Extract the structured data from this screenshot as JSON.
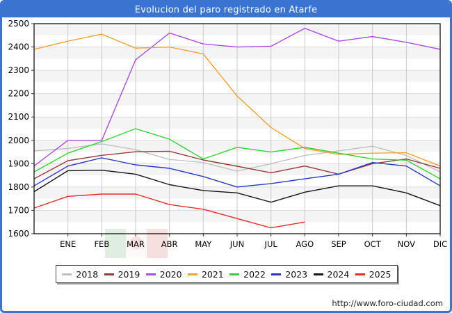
{
  "title": "Evolucion del paro registrado en Atarfe",
  "footer": {
    "url": "http://www.foro-ciudad.com"
  },
  "colors": {
    "frame_blue": "#3b74d0",
    "band": "#f4f4f4",
    "grid_vertical": "#c9c9c9",
    "grid_horizontal": "#dcdcdc",
    "plot_border": "#000000",
    "axis_text": "#000000"
  },
  "chart_data": {
    "type": "line",
    "title": "Evolucion del paro registrado en Atarfe",
    "xlabel": "",
    "ylabel": "",
    "x_categories": [
      "ENE",
      "FEB",
      "MAR",
      "ABR",
      "MAY",
      "JUN",
      "JUL",
      "AGO",
      "SEP",
      "OCT",
      "NOV",
      "DIC"
    ],
    "ylim": [
      1600,
      2500
    ],
    "y_ticks": [
      1600,
      1700,
      1800,
      1900,
      2000,
      2100,
      2200,
      2300,
      2400,
      2500
    ],
    "grid": true,
    "legend_position": "bottom",
    "start_note": "Each line begins at the left axis with a pre-January value",
    "series": [
      {
        "name": "2018",
        "color": "#c0c0c0",
        "start": 1955,
        "values": [
          1965,
          1985,
          1960,
          1918,
          1905,
          1868,
          1900,
          1935,
          1955,
          1975,
          1935,
          1865
        ]
      },
      {
        "name": "2019",
        "color": "#943a3a",
        "start": 1835,
        "values": [
          1913,
          1936,
          1951,
          1953,
          1916,
          1889,
          1861,
          1890,
          1855,
          1900,
          1920,
          1880
        ]
      },
      {
        "name": "2020",
        "color": "#a94ce0",
        "start": 1890,
        "values": [
          2000,
          2000,
          2345,
          2460,
          2413,
          2400,
          2403,
          2480,
          2425,
          2445,
          2420,
          2390
        ]
      },
      {
        "name": "2021",
        "color": "#f2a133",
        "start": 2390,
        "values": [
          2425,
          2455,
          2395,
          2400,
          2370,
          2190,
          2055,
          1965,
          1940,
          1945,
          1947,
          1890
        ]
      },
      {
        "name": "2022",
        "color": "#2fd32f",
        "start": 1865,
        "values": [
          1945,
          1995,
          2050,
          2005,
          1920,
          1970,
          1950,
          1970,
          1945,
          1920,
          1915,
          1835
        ]
      },
      {
        "name": "2023",
        "color": "#2a35c8",
        "start": 1805,
        "values": [
          1890,
          1925,
          1895,
          1880,
          1845,
          1800,
          1815,
          1835,
          1855,
          1905,
          1890,
          1805
        ]
      },
      {
        "name": "2024",
        "color": "#141414",
        "start": 1780,
        "values": [
          1870,
          1872,
          1855,
          1810,
          1785,
          1775,
          1735,
          1778,
          1805,
          1805,
          1775,
          1720
        ]
      },
      {
        "name": "2025",
        "color": "#e32b2b",
        "start": 1710,
        "values": [
          1760,
          1770,
          1770,
          1725,
          1705,
          1665,
          1625,
          1650,
          null,
          null,
          null,
          null
        ]
      }
    ]
  }
}
